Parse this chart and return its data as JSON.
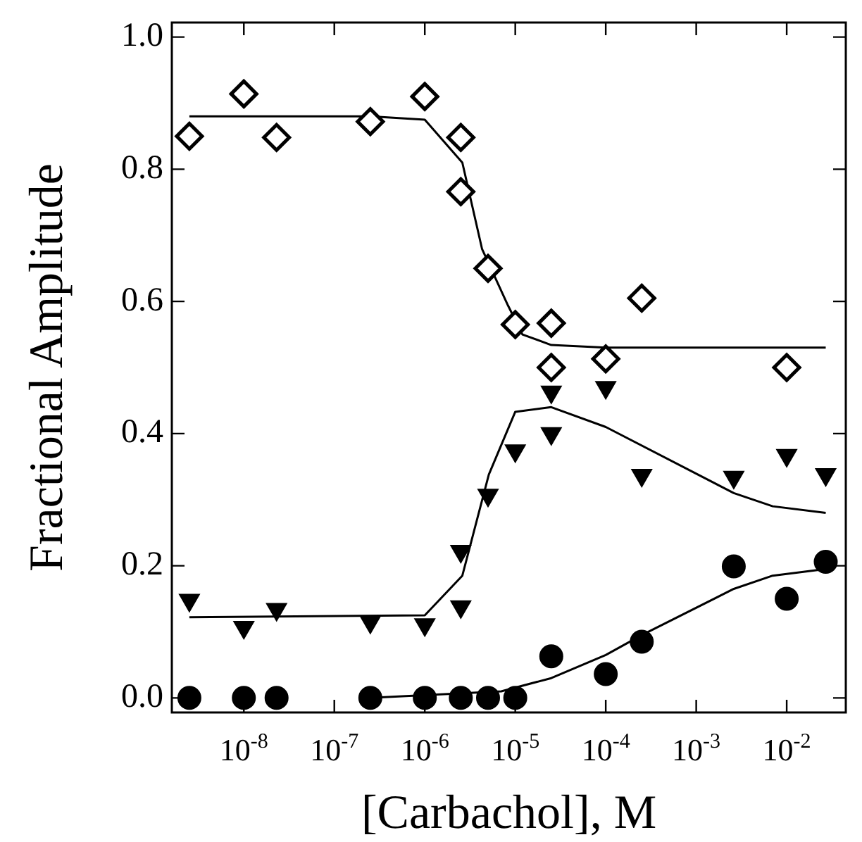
{
  "chart_data": {
    "type": "scatter",
    "xlabel": "[Carbachol], M",
    "ylabel": "Fractional Amplitude",
    "log": "x",
    "grid": false,
    "legend": false,
    "xlim": [
      1.6e-09,
      0.045
    ],
    "ylim": [
      -0.022,
      1.022
    ],
    "xticks": [
      {
        "value": 1e-08,
        "label": "10$^{-8}$"
      },
      {
        "value": 1e-07,
        "label": "10$^{-7}$"
      },
      {
        "value": 1e-06,
        "label": "10$^{-6}$"
      },
      {
        "value": 1e-05,
        "label": "10$^{-5}$"
      },
      {
        "value": 0.0001,
        "label": "10$^{-4}$"
      },
      {
        "value": 0.001,
        "label": "10$^{-3}$"
      },
      {
        "value": 0.01,
        "label": "10$^{-2}$"
      }
    ],
    "yticks": [
      {
        "value": 0,
        "label": "0.0"
      },
      0.2,
      0.4,
      0.6,
      0.8,
      {
        "value": 1,
        "label": "1.0"
      }
    ],
    "series": [
      {
        "type": "scatter",
        "marker": "diamond",
        "color": "#000000",
        "x": [
          2.5e-09,
          1e-08,
          2.3e-08,
          2.5e-07,
          1e-06,
          2.5e-06,
          2.5e-06,
          5e-06,
          1e-05,
          2.5e-05,
          2.5e-05,
          0.0001,
          0.00025,
          0.01
        ],
        "values": [
          0.85,
          0.914,
          0.848,
          0.872,
          0.91,
          0.848,
          0.766,
          0.65,
          0.565,
          0.567,
          0.5,
          0.513,
          0.605,
          0.5
        ]
      },
      {
        "type": "scatter",
        "marker": "triangle",
        "color": "#000000",
        "x": [
          2.5e-09,
          1e-08,
          2.3e-08,
          2.5e-07,
          1e-06,
          2.5e-06,
          2.5e-06,
          5e-06,
          1e-05,
          2.5e-05,
          2.5e-05,
          0.0001,
          0.00025,
          0.0026,
          0.01,
          0.027
        ],
        "values": [
          0.148,
          0.107,
          0.134,
          0.115,
          0.111,
          0.222,
          0.138,
          0.307,
          0.374,
          0.4,
          0.463,
          0.47,
          0.337,
          0.334,
          0.367,
          0.338
        ]
      },
      {
        "type": "scatter",
        "marker": "circle",
        "color": "#000000",
        "x": [
          2.5e-09,
          1e-08,
          2.3e-08,
          2.5e-07,
          1e-06,
          2.5e-06,
          5e-06,
          1e-05,
          2.5e-05,
          0.0001,
          0.00025,
          0.0026,
          0.01,
          0.027
        ],
        "values": [
          0,
          0,
          0,
          0,
          0,
          0,
          0,
          0,
          0.063,
          0.036,
          0.085,
          0.199,
          0.15,
          0.206
        ]
      },
      {
        "type": "line",
        "marker": "none",
        "color": "#000000",
        "x": [
          2.5e-09,
          2.5e-07,
          1e-06,
          2.6e-06,
          4.3e-06,
          8.3e-06,
          1.2e-05,
          2.5e-05,
          0.0001,
          0.027
        ],
        "values": [
          0.88,
          0.88,
          0.875,
          0.81,
          0.679,
          0.594,
          0.55,
          0.534,
          0.53,
          0.53
        ]
      },
      {
        "type": "line",
        "marker": "none",
        "color": "#000000",
        "x": [
          2.5e-09,
          1e-06,
          2.6e-06,
          5.1e-06,
          1e-05,
          2.5e-05,
          0.0001,
          0.0026,
          0.007,
          0.027
        ],
        "values": [
          0.122,
          0.125,
          0.185,
          0.338,
          0.433,
          0.44,
          0.41,
          0.31,
          0.29,
          0.28
        ]
      },
      {
        "type": "line",
        "marker": "none",
        "color": "#000000",
        "x": [
          2.5e-07,
          7e-06,
          2.5e-05,
          0.0001,
          0.00025,
          0.0026,
          0.007,
          0.027
        ],
        "values": [
          0,
          0.01,
          0.03,
          0.065,
          0.095,
          0.165,
          0.185,
          0.195
        ]
      }
    ]
  }
}
